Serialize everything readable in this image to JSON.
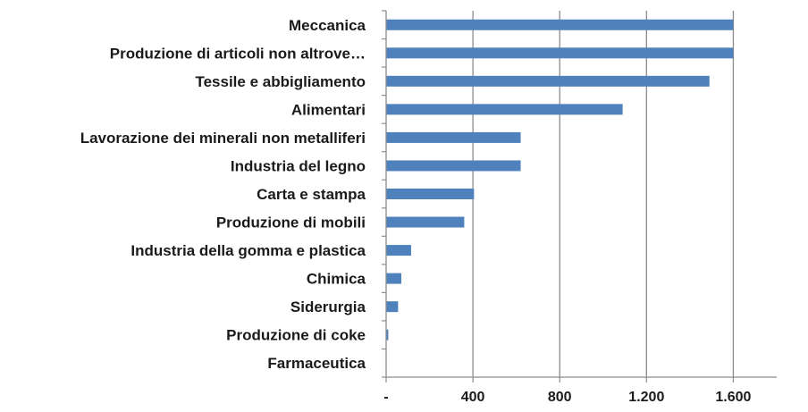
{
  "chart_data": {
    "type": "bar",
    "orientation": "horizontal",
    "categories": [
      "Meccanica",
      "Produzione di articoli non altrove…",
      "Tessile e abbigliamento",
      "Alimentari",
      "Lavorazione dei minerali non metalliferi",
      "Industria del legno",
      "Carta e stampa",
      "Produzione di mobili",
      "Industria della gomma e plastica",
      "Chimica",
      "Siderurgia",
      "Produzione di coke",
      "Farmaceutica"
    ],
    "values": [
      1600,
      1600,
      1490,
      1090,
      620,
      620,
      405,
      360,
      115,
      70,
      55,
      10,
      0
    ],
    "xlim": [
      0,
      1800
    ],
    "xticks": [
      0,
      400,
      800,
      1200,
      1600
    ],
    "xtick_labels": [
      "-",
      "400",
      "800",
      "1.200",
      "1.600"
    ],
    "grid": "vertical",
    "bar_color": "#4f81bd",
    "title": "",
    "xlabel": "",
    "ylabel": ""
  }
}
